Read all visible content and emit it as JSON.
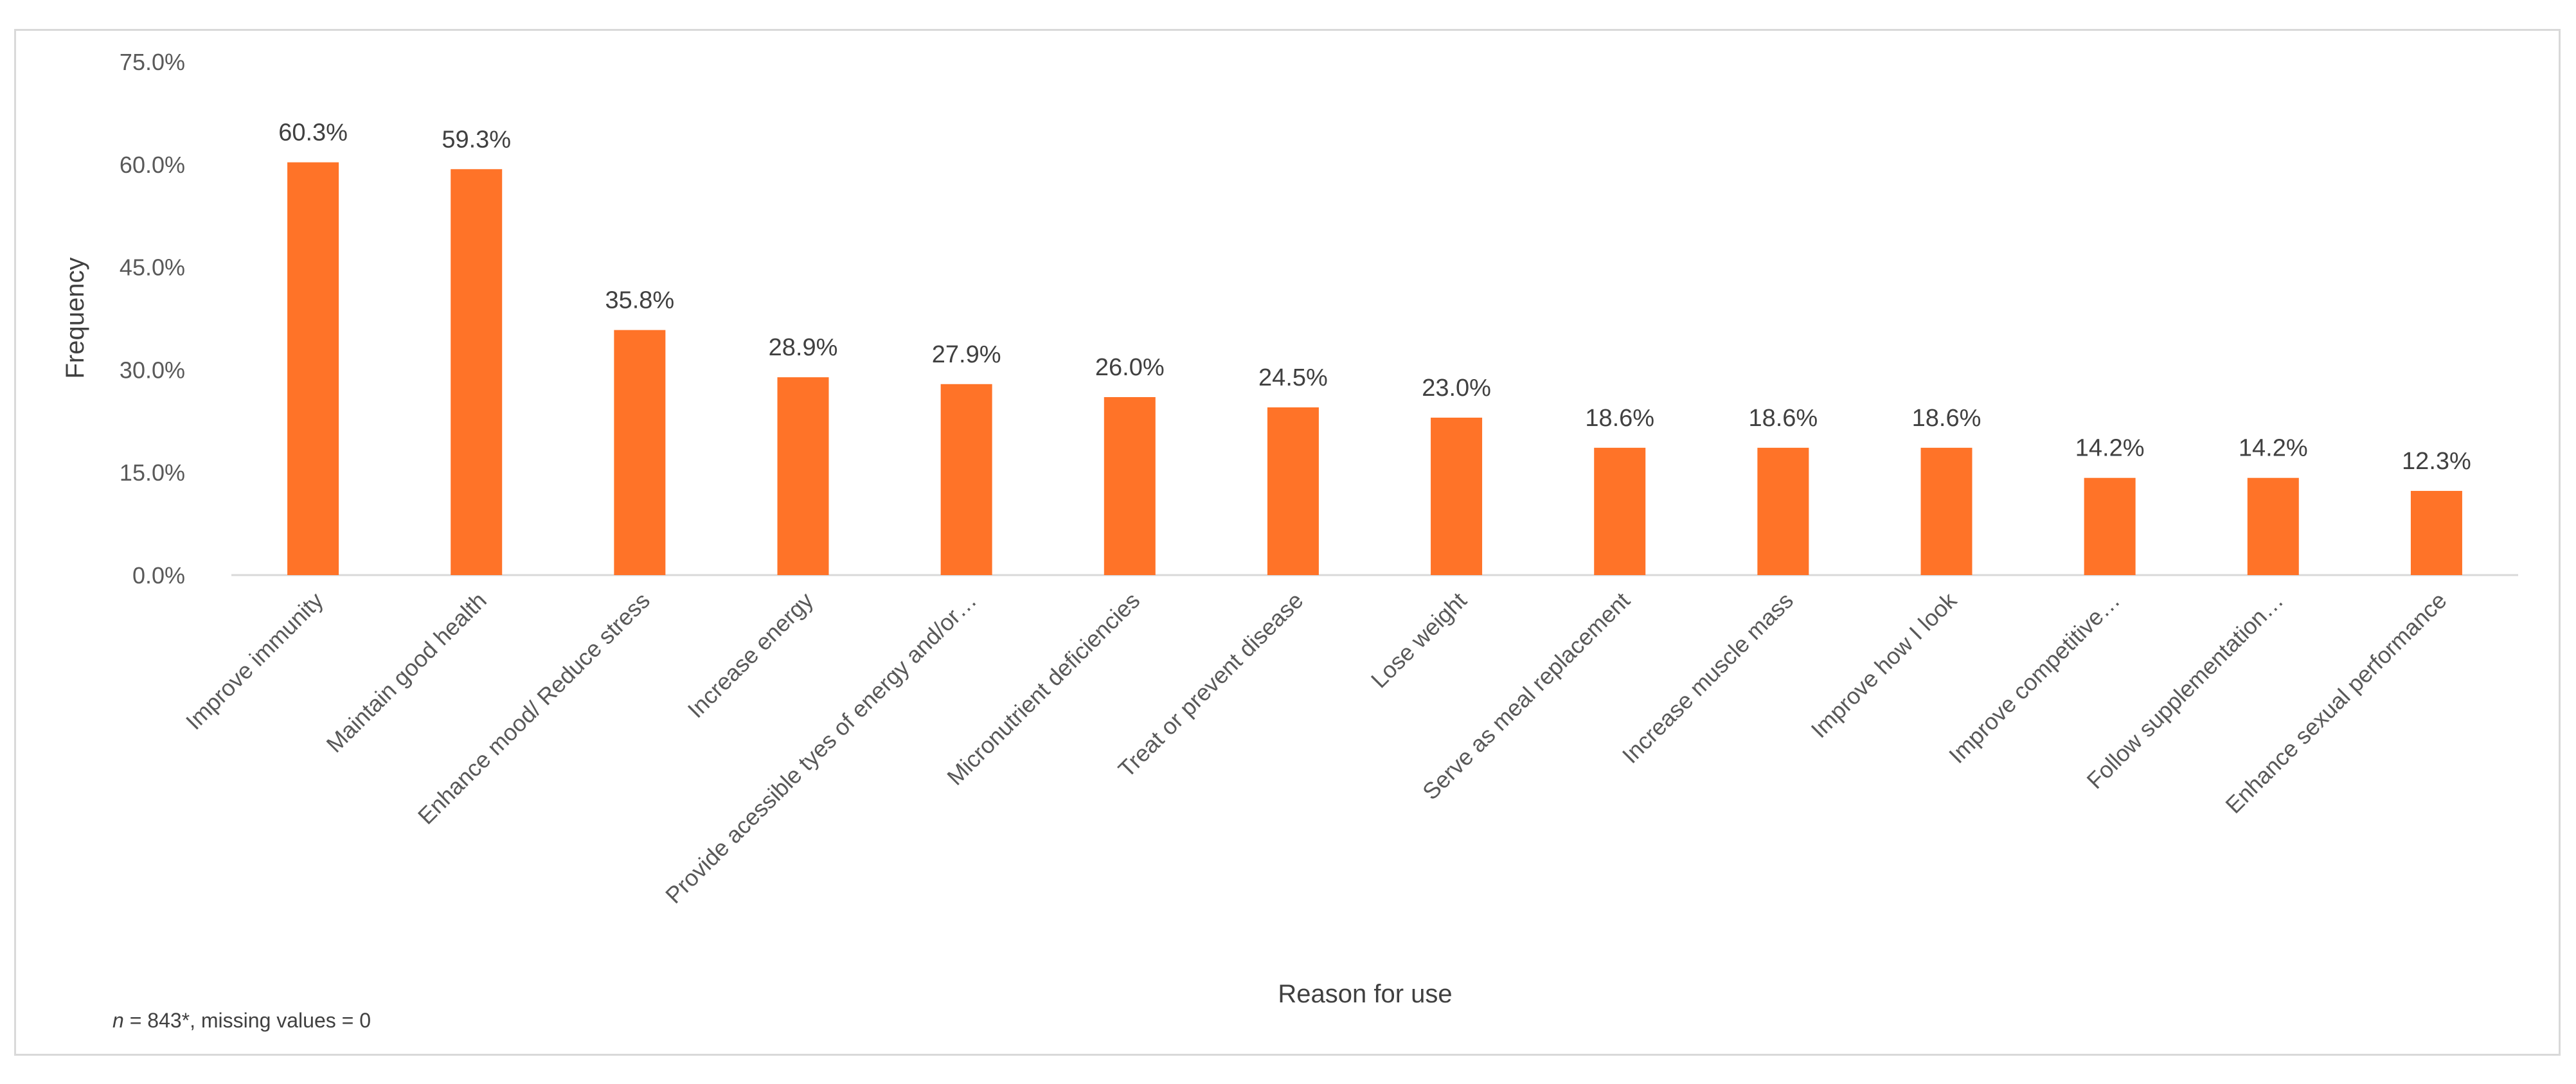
{
  "chart_data": {
    "type": "bar",
    "xlabel": "Reason for use",
    "ylabel": "Frequency",
    "ylim": [
      0,
      75
    ],
    "yticks": [
      "0.0%",
      "15.0%",
      "30.0%",
      "45.0%",
      "60.0%",
      "75.0%"
    ],
    "ytick_values": [
      0,
      15,
      30,
      45,
      60,
      75
    ],
    "grid": false,
    "legend": "none",
    "categories": [
      "Improve immunity",
      "Maintain good health",
      "Enhance mood/ Reduce stress",
      "Increase energy",
      "Provide acessible tyes of energy and/or…",
      "Micronutrient deficiencies",
      "Treat or prevent disease",
      "Lose weight",
      "Serve as meal replacement",
      "Increase muscle mass",
      "Improve how I look",
      "Improve competitive…",
      "Follow supplementation…",
      "Enhance sexual performance"
    ],
    "values": [
      60.3,
      59.3,
      35.8,
      28.9,
      27.9,
      26.0,
      24.5,
      23.0,
      18.6,
      18.6,
      18.6,
      14.2,
      14.2,
      12.3
    ],
    "data_labels": [
      "60.3%",
      "59.3%",
      "35.8%",
      "28.9%",
      "27.9%",
      "26.0%",
      "24.5%",
      "23.0%",
      "18.6%",
      "18.6%",
      "18.6%",
      "14.2%",
      "14.2%",
      "12.3%"
    ],
    "bar_color": "#ff7328",
    "axis_color": "#d9d9d9"
  },
  "footnote": {
    "n_symbol": "n",
    "text": " = 843*, missing values = 0"
  }
}
